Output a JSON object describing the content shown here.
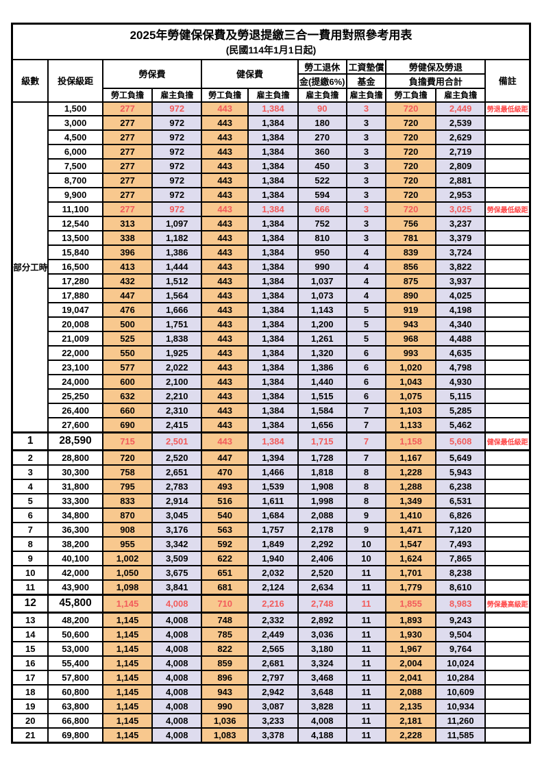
{
  "title": "2025年勞健保保費及勞退提繳三合一費用對照參考用表",
  "subtitle": "(民國114年1月1日起)",
  "header": {
    "level": "級數",
    "bracket": "投保級距",
    "labor_group": "勞保費",
    "health_group": "健保費",
    "pension_line1": "勞工退休",
    "pension_line2": "金(提繳6%)",
    "wage_fund_line1": "工資墊償",
    "wage_fund_line2": "基金",
    "total_line1": "勞健保及勞退",
    "total_line2": "負擔費用合計",
    "remark": "備註",
    "employee": "勞工負擔",
    "employer": "雇主負擔"
  },
  "part_time": {
    "label": "部分工時",
    "rowspan": 23
  },
  "colors": {
    "employee_bg": "#F8C88E",
    "employer_bg": "#DEDCEE",
    "highlight_text": "#F25B5B",
    "remark_text": "#FF4747",
    "border": "#000000",
    "background": "#FFFFFF"
  },
  "rows": [
    {
      "level": "",
      "bracket": "1,500",
      "v": [
        "277",
        "972",
        "443",
        "1,384",
        "90",
        "3",
        "720",
        "2,449"
      ],
      "remark": "勞退最低級距",
      "red": true,
      "em": false
    },
    {
      "level": "",
      "bracket": "3,000",
      "v": [
        "277",
        "972",
        "443",
        "1,384",
        "180",
        "3",
        "720",
        "2,539"
      ],
      "remark": "",
      "red": false,
      "em": false
    },
    {
      "level": "",
      "bracket": "4,500",
      "v": [
        "277",
        "972",
        "443",
        "1,384",
        "270",
        "3",
        "720",
        "2,629"
      ],
      "remark": "",
      "red": false,
      "em": false
    },
    {
      "level": "",
      "bracket": "6,000",
      "v": [
        "277",
        "972",
        "443",
        "1,384",
        "360",
        "3",
        "720",
        "2,719"
      ],
      "remark": "",
      "red": false,
      "em": false
    },
    {
      "level": "",
      "bracket": "7,500",
      "v": [
        "277",
        "972",
        "443",
        "1,384",
        "450",
        "3",
        "720",
        "2,809"
      ],
      "remark": "",
      "red": false,
      "em": false
    },
    {
      "level": "",
      "bracket": "8,700",
      "v": [
        "277",
        "972",
        "443",
        "1,384",
        "522",
        "3",
        "720",
        "2,881"
      ],
      "remark": "",
      "red": false,
      "em": false
    },
    {
      "level": "",
      "bracket": "9,900",
      "v": [
        "277",
        "972",
        "443",
        "1,384",
        "594",
        "3",
        "720",
        "2,953"
      ],
      "remark": "",
      "red": false,
      "em": false
    },
    {
      "level": "",
      "bracket": "11,100",
      "v": [
        "277",
        "972",
        "443",
        "1,384",
        "666",
        "3",
        "720",
        "3,025"
      ],
      "remark": "勞保最低級距",
      "red": true,
      "em": false
    },
    {
      "level": "",
      "bracket": "12,540",
      "v": [
        "313",
        "1,097",
        "443",
        "1,384",
        "752",
        "3",
        "756",
        "3,237"
      ],
      "remark": "",
      "red": false,
      "em": false
    },
    {
      "level": "",
      "bracket": "13,500",
      "v": [
        "338",
        "1,182",
        "443",
        "1,384",
        "810",
        "3",
        "781",
        "3,379"
      ],
      "remark": "",
      "red": false,
      "em": false
    },
    {
      "level": "",
      "bracket": "15,840",
      "v": [
        "396",
        "1,386",
        "443",
        "1,384",
        "950",
        "4",
        "839",
        "3,724"
      ],
      "remark": "",
      "red": false,
      "em": false
    },
    {
      "level": "",
      "bracket": "16,500",
      "v": [
        "413",
        "1,444",
        "443",
        "1,384",
        "990",
        "4",
        "856",
        "3,822"
      ],
      "remark": "",
      "red": false,
      "em": false
    },
    {
      "level": "",
      "bracket": "17,280",
      "v": [
        "432",
        "1,512",
        "443",
        "1,384",
        "1,037",
        "4",
        "875",
        "3,937"
      ],
      "remark": "",
      "red": false,
      "em": false
    },
    {
      "level": "",
      "bracket": "17,880",
      "v": [
        "447",
        "1,564",
        "443",
        "1,384",
        "1,073",
        "4",
        "890",
        "4,025"
      ],
      "remark": "",
      "red": false,
      "em": false
    },
    {
      "level": "",
      "bracket": "19,047",
      "v": [
        "476",
        "1,666",
        "443",
        "1,384",
        "1,143",
        "5",
        "919",
        "4,198"
      ],
      "remark": "",
      "red": false,
      "em": false
    },
    {
      "level": "",
      "bracket": "20,008",
      "v": [
        "500",
        "1,751",
        "443",
        "1,384",
        "1,200",
        "5",
        "943",
        "4,340"
      ],
      "remark": "",
      "red": false,
      "em": false
    },
    {
      "level": "",
      "bracket": "21,009",
      "v": [
        "525",
        "1,838",
        "443",
        "1,384",
        "1,261",
        "5",
        "968",
        "4,488"
      ],
      "remark": "",
      "red": false,
      "em": false
    },
    {
      "level": "",
      "bracket": "22,000",
      "v": [
        "550",
        "1,925",
        "443",
        "1,384",
        "1,320",
        "6",
        "993",
        "4,635"
      ],
      "remark": "",
      "red": false,
      "em": false
    },
    {
      "level": "",
      "bracket": "23,100",
      "v": [
        "577",
        "2,022",
        "443",
        "1,384",
        "1,386",
        "6",
        "1,020",
        "4,798"
      ],
      "remark": "",
      "red": false,
      "em": false
    },
    {
      "level": "",
      "bracket": "24,000",
      "v": [
        "600",
        "2,100",
        "443",
        "1,384",
        "1,440",
        "6",
        "1,043",
        "4,930"
      ],
      "remark": "",
      "red": false,
      "em": false
    },
    {
      "level": "",
      "bracket": "25,250",
      "v": [
        "632",
        "2,210",
        "443",
        "1,384",
        "1,515",
        "6",
        "1,075",
        "5,115"
      ],
      "remark": "",
      "red": false,
      "em": false
    },
    {
      "level": "",
      "bracket": "26,400",
      "v": [
        "660",
        "2,310",
        "443",
        "1,384",
        "1,584",
        "7",
        "1,103",
        "5,285"
      ],
      "remark": "",
      "red": false,
      "em": false
    },
    {
      "level": "",
      "bracket": "27,600",
      "v": [
        "690",
        "2,415",
        "443",
        "1,384",
        "1,656",
        "7",
        "1,133",
        "5,462"
      ],
      "remark": "",
      "red": false,
      "em": false
    },
    {
      "level": "1",
      "bracket": "28,590",
      "v": [
        "715",
        "2,501",
        "443",
        "1,384",
        "1,715",
        "7",
        "1,158",
        "5,608"
      ],
      "remark": "健保最低級距",
      "red": true,
      "em": true
    },
    {
      "level": "2",
      "bracket": "28,800",
      "v": [
        "720",
        "2,520",
        "447",
        "1,394",
        "1,728",
        "7",
        "1,167",
        "5,649"
      ],
      "remark": "",
      "red": false,
      "em": false
    },
    {
      "level": "3",
      "bracket": "30,300",
      "v": [
        "758",
        "2,651",
        "470",
        "1,466",
        "1,818",
        "8",
        "1,228",
        "5,943"
      ],
      "remark": "",
      "red": false,
      "em": false
    },
    {
      "level": "4",
      "bracket": "31,800",
      "v": [
        "795",
        "2,783",
        "493",
        "1,539",
        "1,908",
        "8",
        "1,288",
        "6,238"
      ],
      "remark": "",
      "red": false,
      "em": false
    },
    {
      "level": "5",
      "bracket": "33,300",
      "v": [
        "833",
        "2,914",
        "516",
        "1,611",
        "1,998",
        "8",
        "1,349",
        "6,531"
      ],
      "remark": "",
      "red": false,
      "em": false
    },
    {
      "level": "6",
      "bracket": "34,800",
      "v": [
        "870",
        "3,045",
        "540",
        "1,684",
        "2,088",
        "9",
        "1,410",
        "6,826"
      ],
      "remark": "",
      "red": false,
      "em": false
    },
    {
      "level": "7",
      "bracket": "36,300",
      "v": [
        "908",
        "3,176",
        "563",
        "1,757",
        "2,178",
        "9",
        "1,471",
        "7,120"
      ],
      "remark": "",
      "red": false,
      "em": false
    },
    {
      "level": "8",
      "bracket": "38,200",
      "v": [
        "955",
        "3,342",
        "592",
        "1,849",
        "2,292",
        "10",
        "1,547",
        "7,493"
      ],
      "remark": "",
      "red": false,
      "em": false
    },
    {
      "level": "9",
      "bracket": "40,100",
      "v": [
        "1,002",
        "3,509",
        "622",
        "1,940",
        "2,406",
        "10",
        "1,624",
        "7,865"
      ],
      "remark": "",
      "red": false,
      "em": false
    },
    {
      "level": "10",
      "bracket": "42,000",
      "v": [
        "1,050",
        "3,675",
        "651",
        "2,032",
        "2,520",
        "11",
        "1,701",
        "8,238"
      ],
      "remark": "",
      "red": false,
      "em": false
    },
    {
      "level": "11",
      "bracket": "43,900",
      "v": [
        "1,098",
        "3,841",
        "681",
        "2,124",
        "2,634",
        "11",
        "1,779",
        "8,610"
      ],
      "remark": "",
      "red": false,
      "em": false
    },
    {
      "level": "12",
      "bracket": "45,800",
      "v": [
        "1,145",
        "4,008",
        "710",
        "2,216",
        "2,748",
        "11",
        "1,855",
        "8,983"
      ],
      "remark": "勞保最高級距",
      "red": true,
      "em": true
    },
    {
      "level": "13",
      "bracket": "48,200",
      "v": [
        "1,145",
        "4,008",
        "748",
        "2,332",
        "2,892",
        "11",
        "1,893",
        "9,243"
      ],
      "remark": "",
      "red": false,
      "em": false
    },
    {
      "level": "14",
      "bracket": "50,600",
      "v": [
        "1,145",
        "4,008",
        "785",
        "2,449",
        "3,036",
        "11",
        "1,930",
        "9,504"
      ],
      "remark": "",
      "red": false,
      "em": false
    },
    {
      "level": "15",
      "bracket": "53,000",
      "v": [
        "1,145",
        "4,008",
        "822",
        "2,565",
        "3,180",
        "11",
        "1,967",
        "9,764"
      ],
      "remark": "",
      "red": false,
      "em": false
    },
    {
      "level": "16",
      "bracket": "55,400",
      "v": [
        "1,145",
        "4,008",
        "859",
        "2,681",
        "3,324",
        "11",
        "2,004",
        "10,024"
      ],
      "remark": "",
      "red": false,
      "em": false
    },
    {
      "level": "17",
      "bracket": "57,800",
      "v": [
        "1,145",
        "4,008",
        "896",
        "2,797",
        "3,468",
        "11",
        "2,041",
        "10,284"
      ],
      "remark": "",
      "red": false,
      "em": false
    },
    {
      "level": "18",
      "bracket": "60,800",
      "v": [
        "1,145",
        "4,008",
        "943",
        "2,942",
        "3,648",
        "11",
        "2,088",
        "10,609"
      ],
      "remark": "",
      "red": false,
      "em": false
    },
    {
      "level": "19",
      "bracket": "63,800",
      "v": [
        "1,145",
        "4,008",
        "990",
        "3,087",
        "3,828",
        "11",
        "2,135",
        "10,934"
      ],
      "remark": "",
      "red": false,
      "em": false
    },
    {
      "level": "20",
      "bracket": "66,800",
      "v": [
        "1,145",
        "4,008",
        "1,036",
        "3,233",
        "4,008",
        "11",
        "2,181",
        "11,260"
      ],
      "remark": "",
      "red": false,
      "em": false
    },
    {
      "level": "21",
      "bracket": "69,800",
      "v": [
        "1,145",
        "4,008",
        "1,083",
        "3,378",
        "4,188",
        "11",
        "2,228",
        "11,585"
      ],
      "remark": "",
      "red": false,
      "em": false
    }
  ]
}
